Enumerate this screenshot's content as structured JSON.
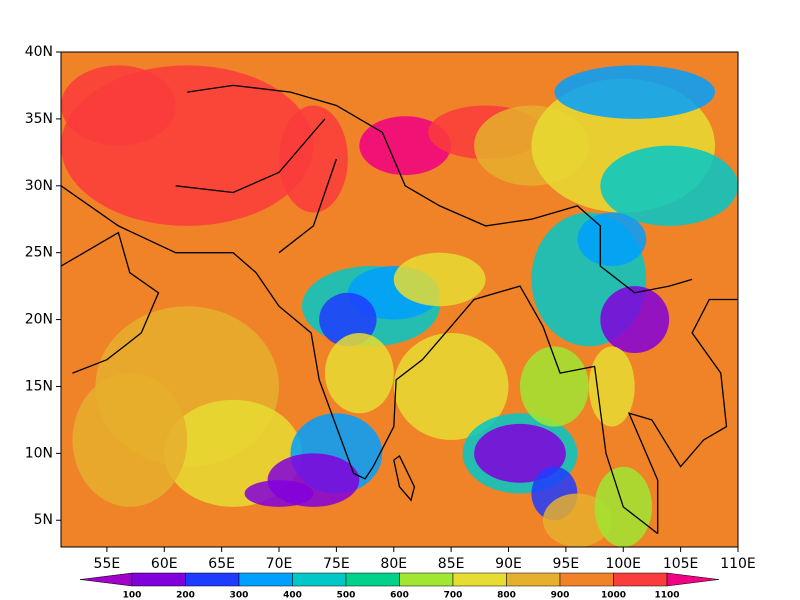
{
  "chart_data": {
    "type": "map",
    "xlim": [
      51,
      110
    ],
    "ylim": [
      3,
      40
    ],
    "xticks": [
      {
        "value": 55,
        "label": "55E"
      },
      {
        "value": 60,
        "label": "60E"
      },
      {
        "value": 65,
        "label": "65E"
      },
      {
        "value": 70,
        "label": "70E"
      },
      {
        "value": 75,
        "label": "75E"
      },
      {
        "value": 80,
        "label": "80E"
      },
      {
        "value": 85,
        "label": "85E"
      },
      {
        "value": 90,
        "label": "90E"
      },
      {
        "value": 95,
        "label": "95E"
      },
      {
        "value": 100,
        "label": "100E"
      },
      {
        "value": 105,
        "label": "105E"
      },
      {
        "value": 110,
        "label": "110E"
      }
    ],
    "yticks": [
      {
        "value": 5,
        "label": "5N"
      },
      {
        "value": 10,
        "label": "10N"
      },
      {
        "value": 15,
        "label": "15N"
      },
      {
        "value": 20,
        "label": "20N"
      },
      {
        "value": 25,
        "label": "25N"
      },
      {
        "value": 30,
        "label": "30N"
      },
      {
        "value": 35,
        "label": "35N"
      },
      {
        "value": 40,
        "label": "40N"
      }
    ],
    "colorbar": {
      "levels": [
        100,
        200,
        300,
        400,
        500,
        600,
        700,
        800,
        900,
        1000,
        1100
      ],
      "colors": [
        "#a000c8",
        "#8200dc",
        "#1e3cff",
        "#00a0ff",
        "#00c8c8",
        "#00d28c",
        "#a0e632",
        "#e6dc32",
        "#e6af2d",
        "#f08228",
        "#fa3c3c",
        "#f00082"
      ]
    }
  }
}
